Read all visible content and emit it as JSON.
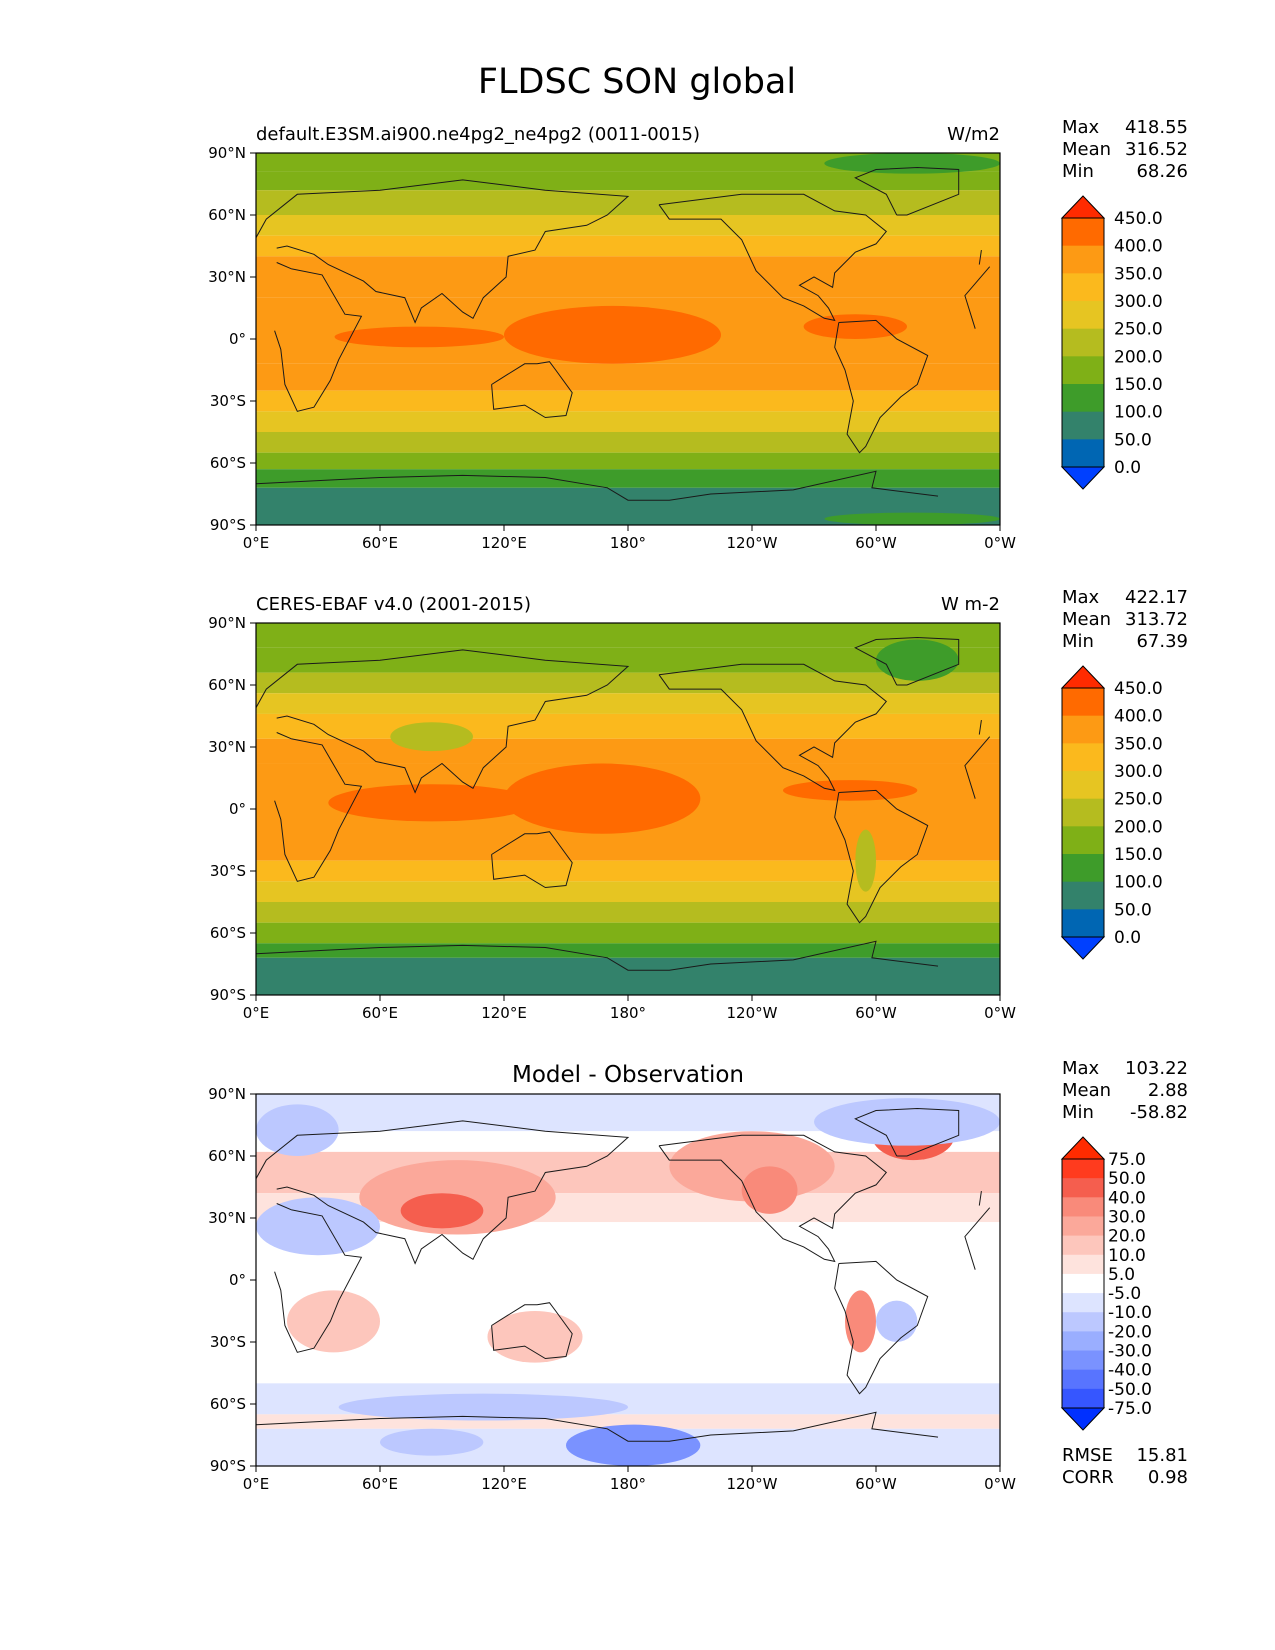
{
  "figure": {
    "title": "FLDSC SON global"
  },
  "chart_data": [
    {
      "type": "heatmap",
      "panel": "test",
      "left_title": "default.E3SM.ai900.ne4pg2_ne4pg2 (0011-0015)",
      "center_title": "",
      "units": "W/m2",
      "xlim": [
        0,
        360
      ],
      "ylim": [
        -90,
        90
      ],
      "x_ticks": [
        "0°E",
        "60°E",
        "120°E",
        "180°",
        "120°W",
        "60°W",
        "0°W"
      ],
      "y_ticks": [
        "90°N",
        "60°N",
        "30°N",
        "0°",
        "30°S",
        "60°S",
        "90°S"
      ],
      "stats": [
        {
          "label": "Max",
          "value": "418.55"
        },
        {
          "label": "Mean",
          "value": "316.52"
        },
        {
          "label": "Min",
          "value": "68.26"
        }
      ],
      "colorbar": {
        "labels": [
          "450.0",
          "400.0",
          "350.0",
          "300.0",
          "250.0",
          "200.0",
          "150.0",
          "100.0",
          "50.0",
          "0.0"
        ],
        "colors": [
          "#ff2b00",
          "#ff6a00",
          "#fd9a14",
          "#fbb91d",
          "#e6c522",
          "#b5bc1f",
          "#7fb017",
          "#3e9c2a",
          "#33826b",
          "#0066b3",
          "#0040ff"
        ]
      },
      "zonal_bands": [
        {
          "lat": [
            90,
            81
          ],
          "color": "#7fb017"
        },
        {
          "lat": [
            81,
            72
          ],
          "color": "#7fb017"
        },
        {
          "lat": [
            72,
            60
          ],
          "color": "#b5bc1f"
        },
        {
          "lat": [
            60,
            50
          ],
          "color": "#e6c522"
        },
        {
          "lat": [
            50,
            40
          ],
          "color": "#fbb91d"
        },
        {
          "lat": [
            40,
            20
          ],
          "color": "#fd9a14"
        },
        {
          "lat": [
            20,
            -12
          ],
          "color": "#fd9a14"
        },
        {
          "lat": [
            -12,
            -25
          ],
          "color": "#fd9a14"
        },
        {
          "lat": [
            -25,
            -35
          ],
          "color": "#fbb91d"
        },
        {
          "lat": [
            -35,
            -45
          ],
          "color": "#e6c522"
        },
        {
          "lat": [
            -45,
            -55
          ],
          "color": "#b5bc1f"
        },
        {
          "lat": [
            -55,
            -63
          ],
          "color": "#7fb017"
        },
        {
          "lat": [
            -63,
            -72
          ],
          "color": "#3e9c2a"
        },
        {
          "lat": [
            -72,
            -90
          ],
          "color": "#33826b"
        }
      ],
      "regions": [
        {
          "lon": [
            38,
            120
          ],
          "lat": [
            6,
            -4
          ],
          "color": "#ff6a00"
        },
        {
          "lon": [
            120,
            225
          ],
          "lat": [
            16,
            -12
          ],
          "color": "#ff6a00"
        },
        {
          "lon": [
            265,
            315
          ],
          "lat": [
            12,
            0
          ],
          "color": "#ff6a00"
        },
        {
          "lon": [
            275,
            360
          ],
          "lat": [
            90,
            80
          ],
          "color": "#3e9c2a"
        },
        {
          "lon": [
            275,
            360
          ],
          "lat": [
            -84,
            -90
          ],
          "color": "#3e9c2a"
        }
      ],
      "region_shape": "ellipse"
    },
    {
      "type": "heatmap",
      "panel": "reference",
      "left_title": "CERES-EBAF v4.0 (2001-2015)",
      "center_title": "",
      "units": "W m-2",
      "xlim": [
        0,
        360
      ],
      "ylim": [
        -90,
        90
      ],
      "x_ticks": [
        "0°E",
        "60°E",
        "120°E",
        "180°",
        "120°W",
        "60°W",
        "0°W"
      ],
      "y_ticks": [
        "90°N",
        "60°N",
        "30°N",
        "0°",
        "30°S",
        "60°S",
        "90°S"
      ],
      "stats": [
        {
          "label": "Max",
          "value": "422.17"
        },
        {
          "label": "Mean",
          "value": "313.72"
        },
        {
          "label": "Min",
          "value": "67.39"
        }
      ],
      "colorbar": {
        "labels": [
          "450.0",
          "400.0",
          "350.0",
          "300.0",
          "250.0",
          "200.0",
          "150.0",
          "100.0",
          "50.0",
          "0.0"
        ],
        "colors": [
          "#ff2b00",
          "#ff6a00",
          "#fd9a14",
          "#fbb91d",
          "#e6c522",
          "#b5bc1f",
          "#7fb017",
          "#3e9c2a",
          "#33826b",
          "#0066b3",
          "#0040ff"
        ]
      },
      "zonal_bands": [
        {
          "lat": [
            90,
            78
          ],
          "color": "#7fb017"
        },
        {
          "lat": [
            78,
            66
          ],
          "color": "#7fb017"
        },
        {
          "lat": [
            66,
            56
          ],
          "color": "#b5bc1f"
        },
        {
          "lat": [
            56,
            46
          ],
          "color": "#e6c522"
        },
        {
          "lat": [
            46,
            34
          ],
          "color": "#fbb91d"
        },
        {
          "lat": [
            34,
            22
          ],
          "color": "#fd9a14"
        },
        {
          "lat": [
            22,
            -15
          ],
          "color": "#fd9a14"
        },
        {
          "lat": [
            -15,
            -25
          ],
          "color": "#fd9a14"
        },
        {
          "lat": [
            -25,
            -35
          ],
          "color": "#fbb91d"
        },
        {
          "lat": [
            -35,
            -45
          ],
          "color": "#e6c522"
        },
        {
          "lat": [
            -45,
            -55
          ],
          "color": "#b5bc1f"
        },
        {
          "lat": [
            -55,
            -65
          ],
          "color": "#7fb017"
        },
        {
          "lat": [
            -65,
            -72
          ],
          "color": "#3e9c2a"
        },
        {
          "lat": [
            -72,
            -90
          ],
          "color": "#33826b"
        }
      ],
      "regions": [
        {
          "lon": [
            35,
            135
          ],
          "lat": [
            12,
            -6
          ],
          "color": "#ff6a00"
        },
        {
          "lon": [
            120,
            215
          ],
          "lat": [
            22,
            -12
          ],
          "color": "#ff6a00"
        },
        {
          "lon": [
            255,
            320
          ],
          "lat": [
            14,
            4
          ],
          "color": "#ff6a00"
        },
        {
          "lon": [
            285,
            320
          ],
          "lat": [
            0,
            -20
          ],
          "color": "#fd9a14"
        },
        {
          "lon": [
            65,
            105
          ],
          "lat": [
            42,
            28
          ],
          "color": "#b5bc1f"
        },
        {
          "lon": [
            300,
            340
          ],
          "lat": [
            82,
            62
          ],
          "color": "#3e9c2a"
        },
        {
          "lon": [
            290,
            300
          ],
          "lat": [
            -10,
            -40
          ],
          "color": "#b5bc1f"
        }
      ],
      "region_shape": "ellipse"
    },
    {
      "type": "heatmap",
      "panel": "difference",
      "left_title": "",
      "center_title": "Model - Observation",
      "units": "",
      "xlim": [
        0,
        360
      ],
      "ylim": [
        -90,
        90
      ],
      "x_ticks": [
        "0°E",
        "60°E",
        "120°E",
        "180°",
        "120°W",
        "60°W",
        "0°W"
      ],
      "y_ticks": [
        "90°N",
        "60°N",
        "30°N",
        "0°",
        "30°S",
        "60°S",
        "90°S"
      ],
      "stats": [
        {
          "label": "Max",
          "value": "103.22"
        },
        {
          "label": "Mean",
          "value": "2.88"
        },
        {
          "label": "Min",
          "value": "-58.82"
        }
      ],
      "extra_stats": [
        {
          "label": "RMSE",
          "value": "15.81"
        },
        {
          "label": "CORR",
          "value": "0.98"
        }
      ],
      "colorbar": {
        "labels": [
          "75.0",
          "50.0",
          "40.0",
          "30.0",
          "20.0",
          "10.0",
          "5.0",
          "-5.0",
          "-10.0",
          "-20.0",
          "-30.0",
          "-40.0",
          "-50.0",
          "-75.0"
        ],
        "colors": [
          "#ff2b00",
          "#ff3b1e",
          "#f55e4e",
          "#f98a7a",
          "#fba89a",
          "#fdc6bc",
          "#fee3dd",
          "#ffffff",
          "#dde4ff",
          "#bcc8ff",
          "#9aaeff",
          "#7a92ff",
          "#5874ff",
          "#3656ff",
          "#0030ff"
        ]
      },
      "zonal_bands": [
        {
          "lat": [
            90,
            72
          ],
          "color": "#dde4ff"
        },
        {
          "lat": [
            72,
            62
          ],
          "color": "#ffffff"
        },
        {
          "lat": [
            62,
            42
          ],
          "color": "#fdc6bc"
        },
        {
          "lat": [
            42,
            28
          ],
          "color": "#fee3dd"
        },
        {
          "lat": [
            28,
            -50
          ],
          "color": "#ffffff"
        },
        {
          "lat": [
            -50,
            -65
          ],
          "color": "#dde4ff"
        },
        {
          "lat": [
            -65,
            -72
          ],
          "color": "#fee3dd"
        },
        {
          "lat": [
            -72,
            -90
          ],
          "color": "#dde4ff"
        }
      ],
      "regions": [
        {
          "lon": [
            50,
            145
          ],
          "lat": [
            58,
            22
          ],
          "color": "#fba89a"
        },
        {
          "lon": [
            70,
            110
          ],
          "lat": [
            42,
            25
          ],
          "color": "#f55e4e"
        },
        {
          "lon": [
            200,
            280
          ],
          "lat": [
            72,
            38
          ],
          "color": "#fba89a"
        },
        {
          "lon": [
            235,
            262
          ],
          "lat": [
            55,
            32
          ],
          "color": "#f98a7a"
        },
        {
          "lon": [
            298,
            338
          ],
          "lat": [
            82,
            58
          ],
          "color": "#f55e4e"
        },
        {
          "lon": [
            0,
            60
          ],
          "lat": [
            40,
            12
          ],
          "color": "#bcc8ff"
        },
        {
          "lon": [
            15,
            60
          ],
          "lat": [
            -5,
            -35
          ],
          "color": "#fdc6bc"
        },
        {
          "lon": [
            112,
            158
          ],
          "lat": [
            -15,
            -40
          ],
          "color": "#fdc6bc"
        },
        {
          "lon": [
            285,
            300
          ],
          "lat": [
            -5,
            -35
          ],
          "color": "#f98a7a"
        },
        {
          "lon": [
            300,
            320
          ],
          "lat": [
            -10,
            -30
          ],
          "color": "#bcc8ff"
        },
        {
          "lon": [
            150,
            215
          ],
          "lat": [
            -70,
            -90
          ],
          "color": "#7a92ff"
        },
        {
          "lon": [
            270,
            360
          ],
          "lat": [
            88,
            65
          ],
          "color": "#bcc8ff"
        },
        {
          "lon": [
            0,
            40
          ],
          "lat": [
            85,
            60
          ],
          "color": "#bcc8ff"
        },
        {
          "lon": [
            40,
            180
          ],
          "lat": [
            -55,
            -68
          ],
          "color": "#bcc8ff"
        },
        {
          "lon": [
            60,
            110
          ],
          "lat": [
            -72,
            -85
          ],
          "color": "#bcc8ff"
        }
      ],
      "region_shape": "ellipse"
    }
  ]
}
